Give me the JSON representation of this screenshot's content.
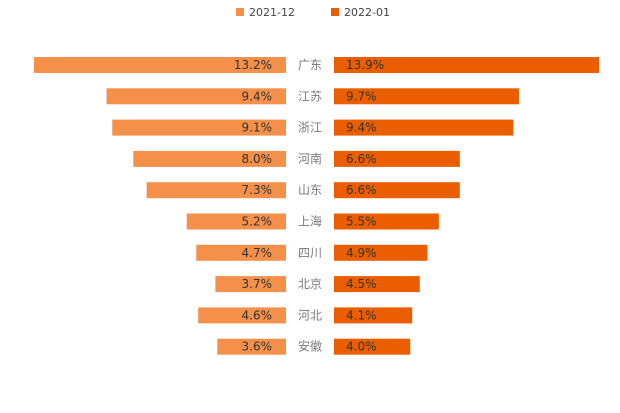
{
  "chart_data": {
    "type": "bar",
    "orientation": "horizontal-butterfly",
    "categories": [
      "广东",
      "江苏",
      "浙江",
      "河南",
      "山东",
      "上海",
      "四川",
      "北京",
      "河北",
      "安徽"
    ],
    "series": [
      {
        "name": "2021-12",
        "color": "#F5904A",
        "side": "left",
        "values": [
          13.2,
          9.4,
          9.1,
          8.0,
          7.3,
          5.2,
          4.7,
          3.7,
          4.6,
          3.6
        ],
        "labels": [
          "13.2%",
          "9.4%",
          "9.1%",
          "8.0%",
          "7.3%",
          "5.2%",
          "4.7%",
          "3.7%",
          "4.6%",
          "3.6%"
        ]
      },
      {
        "name": "2022-01",
        "color": "#EA5E00",
        "side": "right",
        "values": [
          13.9,
          9.7,
          9.4,
          6.6,
          6.6,
          5.5,
          4.9,
          4.5,
          4.1,
          4.0
        ],
        "labels": [
          "13.9%",
          "9.7%",
          "9.4%",
          "6.6%",
          "6.6%",
          "5.5%",
          "4.9%",
          "4.5%",
          "4.1%",
          "4.0%"
        ]
      }
    ],
    "unit": "%",
    "legend": "top-center",
    "grid": false
  }
}
